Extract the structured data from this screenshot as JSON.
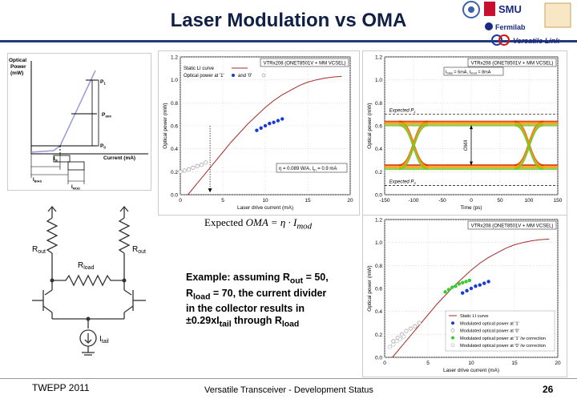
{
  "slide": {
    "title": "Laser Modulation vs OMA",
    "logo_label": "Versatile Link",
    "smu_label": "SMU",
    "fermilab_label": "Fermilab",
    "footer_left": "TWEPP 2011",
    "footer_center": "Versatile Transceiver - Development Status",
    "page_number": "26"
  },
  "formula": {
    "expected": "Expected",
    "rhs": "OMA = η · I",
    "sub": "mod"
  },
  "example": {
    "l1a": "Example: assuming R",
    "l1sub": "out",
    "l1b": " = 50,",
    "l2a": "R",
    "l2sub": "load",
    "l2b": " = 70, the current divider",
    "l3": "in the collector results in",
    "l4a": "±0.29xI",
    "l4sub": "tail",
    "l4b": " through R",
    "l4sub2": "load"
  },
  "schematic_li": {
    "ylabel_line1": "Optical",
    "ylabel_line2": "Power",
    "ylabel_line3": "(mW)",
    "p1": "P",
    "p1sub": "1",
    "pave": "P",
    "pavesub": "ave",
    "p0": "P",
    "p0sub": "0",
    "xlabel": "Current (mA)",
    "ith": "I",
    "ithsub": "th",
    "ibias": "I",
    "ibiassub": "BIAS",
    "imod": "I",
    "imodsub": "MOD"
  },
  "circuit": {
    "rout_left": "R",
    "rout_left_sub": "out",
    "rout_right": "R",
    "rout_right_sub": "out",
    "rload": "R",
    "rload_sub": "load",
    "itail": "I",
    "itail_sub": "tail"
  },
  "chart_data": [
    {
      "type": "line",
      "title": "VTRx208 (ONET8501V + MM VCSEL)",
      "xlabel": "Laser drive current (mA)",
      "ylabel": "Optical power (mW)",
      "xlim": [
        0,
        20
      ],
      "ylim": [
        0,
        1.2
      ],
      "xticks": [
        "0",
        "5",
        "10",
        "15",
        "20"
      ],
      "yticks": [
        "0.0",
        "0.2",
        "0.4",
        "0.6",
        "0.8",
        "1.0",
        "1.2"
      ],
      "legend": [
        "Static LI curve",
        "Optical power at '1'",
        "and '0'"
      ],
      "annotation": "η = 0.089 W/A, I",
      "annotation_sub": "th",
      "annotation_tail": " = 0.9 mA",
      "series": [
        {
          "name": "Static LI curve",
          "x": [
            0.9,
            2,
            3,
            4,
            5,
            6,
            7,
            8,
            9,
            10,
            11,
            12,
            13,
            14,
            15,
            16,
            17,
            18,
            19
          ],
          "y": [
            0.0,
            0.1,
            0.19,
            0.28,
            0.37,
            0.46,
            0.54,
            0.62,
            0.69,
            0.76,
            0.82,
            0.87,
            0.91,
            0.95,
            0.98,
            1.0,
            1.015,
            1.025,
            1.03
          ]
        },
        {
          "name": "Optical power at '1'",
          "x": [
            9.0,
            9.5,
            10.0,
            10.5,
            11.0,
            11.5,
            12.0
          ],
          "y": [
            0.56,
            0.58,
            0.6,
            0.62,
            0.63,
            0.645,
            0.66
          ]
        },
        {
          "name": "and '0'",
          "x": [
            0.0,
            0.5,
            1.0,
            1.5,
            2.0,
            2.5,
            3.0
          ],
          "y": [
            0.2,
            0.21,
            0.22,
            0.235,
            0.25,
            0.26,
            0.28
          ]
        }
      ],
      "vline_x": 3.5
    },
    {
      "type": "line",
      "title": "VTRx208 (ONET8501V + MM VCSEL)",
      "subtitle": "I",
      "subtitle_parts": {
        "a": "I",
        "a_sub": "bias",
        "b": " = 6mA, I",
        "b_sub": "mod",
        "c": " = 8mA"
      },
      "xlabel": "Time (ps)",
      "ylabel": "Optical power (mW)",
      "xlim": [
        -150,
        150
      ],
      "ylim": [
        0,
        1.2
      ],
      "xticks": [
        "-150",
        "-100",
        "-50",
        "0",
        "50",
        "100",
        "150"
      ],
      "yticks": [
        "0.0",
        "0.2",
        "0.4",
        "0.6",
        "0.8",
        "1.0",
        "1.2"
      ],
      "labels": {
        "p1": "Expected P",
        "p1_sub": "1",
        "p0": "Expected P",
        "p0_sub": "0",
        "oma": "OMA"
      },
      "expected_p1": 0.7,
      "expected_p0": 0.08,
      "eye_high": 0.62,
      "eye_low": 0.24
    },
    {
      "type": "scatter",
      "title": "VTRx208 (ONET8501V + MM VCSEL)",
      "xlabel": "Laser drive current (mA)",
      "ylabel": "Optical power (mW)",
      "xlim": [
        0,
        20
      ],
      "ylim": [
        0,
        1.2
      ],
      "xticks": [
        "0",
        "5",
        "10",
        "15",
        "20"
      ],
      "yticks": [
        "0.0",
        "0.2",
        "0.4",
        "0.6",
        "0.8",
        "1.0",
        "1.2"
      ],
      "legend": [
        "Static LI curve",
        "Modulated optical power at '1'",
        "Modulated optical power at '0'",
        "Modulated optical power at '1' /w correction",
        "Modulated optical power at '0' /w correction"
      ],
      "series": [
        {
          "name": "Static LI curve",
          "x": [
            0.9,
            2,
            3,
            4,
            5,
            6,
            7,
            8,
            9,
            10,
            11,
            12,
            13,
            14,
            15,
            16,
            17,
            18,
            19
          ],
          "y": [
            0.0,
            0.1,
            0.19,
            0.28,
            0.37,
            0.46,
            0.54,
            0.62,
            0.69,
            0.76,
            0.82,
            0.87,
            0.91,
            0.95,
            0.98,
            1.0,
            1.015,
            1.025,
            1.03
          ]
        },
        {
          "name": "Modulated optical power at '1'",
          "x": [
            9.0,
            9.5,
            10.0,
            10.5,
            11.0,
            11.5,
            12.0
          ],
          "y": [
            0.56,
            0.58,
            0.6,
            0.62,
            0.63,
            0.645,
            0.66
          ]
        },
        {
          "name": "Modulated optical power at '0'",
          "x": [
            1.0,
            1.5,
            2.0,
            2.5,
            3.0,
            3.5,
            4.0
          ],
          "y": [
            0.14,
            0.17,
            0.2,
            0.23,
            0.25,
            0.27,
            0.3
          ]
        },
        {
          "name": "Modulated optical power at '1' /w correction",
          "x": [
            7.0,
            7.4,
            7.8,
            8.2,
            8.6,
            9.0,
            9.4,
            9.8
          ],
          "y": [
            0.57,
            0.59,
            0.61,
            0.62,
            0.64,
            0.65,
            0.66,
            0.67
          ]
        },
        {
          "name": "Modulated optical power at '0' /w correction",
          "x": [
            0.6,
            1.0,
            1.4,
            1.8,
            2.2
          ],
          "y": [
            0.09,
            0.11,
            0.14,
            0.16,
            0.18
          ]
        }
      ]
    }
  ]
}
